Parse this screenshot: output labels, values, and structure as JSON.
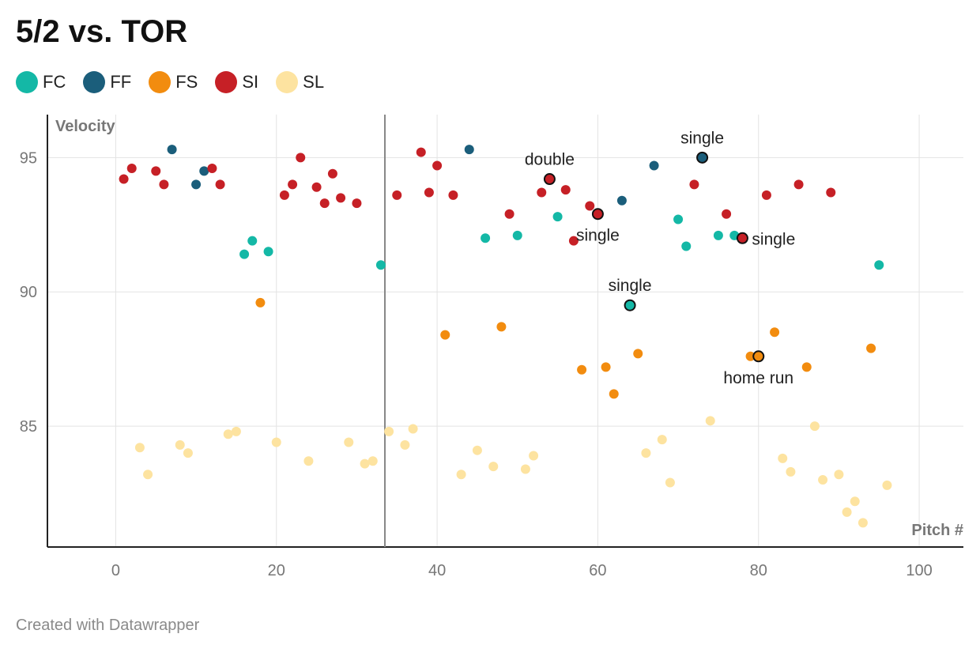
{
  "title": "5/2 vs. TOR",
  "footer": "Created with Datawrapper",
  "legend": [
    {
      "label": "FC",
      "color": "#14b8a6"
    },
    {
      "label": "FF",
      "color": "#1b5e7b"
    },
    {
      "label": "FS",
      "color": "#f28c0f"
    },
    {
      "label": "SI",
      "color": "#c62026"
    },
    {
      "label": "SL",
      "color": "#fde3a0"
    }
  ],
  "chart_data": {
    "type": "scatter",
    "title": "5/2 vs. TOR",
    "xlabel": "Pitch #",
    "ylabel": "Velocity",
    "xlim": [
      -8.5,
      105.5
    ],
    "ylim": [
      80.5,
      96.6
    ],
    "x_ticks": [
      0,
      20,
      40,
      60,
      80,
      100
    ],
    "y_ticks": [
      85,
      90,
      95
    ],
    "grid": true,
    "legend_position": "top-left",
    "vertical_marker_x": 33.5,
    "series": [
      {
        "name": "FC",
        "color": "#14b8a6",
        "x": [
          16,
          17,
          19,
          33,
          46,
          50,
          55,
          64,
          70,
          71,
          75,
          77,
          95
        ],
        "y": [
          91.4,
          91.9,
          91.5,
          91.0,
          92.0,
          92.1,
          92.8,
          89.5,
          92.7,
          91.7,
          92.1,
          92.1,
          91.0
        ]
      },
      {
        "name": "FF",
        "color": "#1b5e7b",
        "x": [
          7,
          10,
          11,
          44,
          63,
          67,
          73
        ],
        "y": [
          95.3,
          94.0,
          94.5,
          95.3,
          93.4,
          94.7,
          95.0
        ]
      },
      {
        "name": "FS",
        "color": "#f28c0f",
        "x": [
          18,
          41,
          48,
          58,
          61,
          62,
          65,
          79,
          80,
          82,
          86,
          94
        ],
        "y": [
          89.6,
          88.4,
          88.7,
          87.1,
          87.2,
          86.2,
          87.7,
          87.6,
          87.6,
          88.5,
          87.2,
          87.9
        ]
      },
      {
        "name": "SI",
        "color": "#c62026",
        "x": [
          1,
          2,
          5,
          6,
          12,
          13,
          21,
          22,
          23,
          25,
          26,
          27,
          28,
          30,
          35,
          38,
          39,
          40,
          42,
          49,
          53,
          54,
          56,
          57,
          59,
          60,
          72,
          76,
          78,
          81,
          85,
          89
        ],
        "y": [
          94.2,
          94.6,
          94.5,
          94.0,
          94.6,
          94.0,
          93.6,
          94.0,
          95.0,
          93.9,
          93.3,
          94.4,
          93.5,
          93.3,
          93.6,
          95.2,
          93.7,
          94.7,
          93.6,
          92.9,
          93.7,
          94.2,
          93.8,
          91.9,
          93.2,
          92.9,
          94.0,
          92.9,
          92.0,
          93.6,
          94.0,
          93.7
        ]
      },
      {
        "name": "SL",
        "color": "#fde3a0",
        "x": [
          3,
          4,
          8,
          9,
          14,
          15,
          20,
          24,
          29,
          31,
          32,
          34,
          36,
          37,
          43,
          45,
          47,
          51,
          52,
          66,
          68,
          69,
          74,
          83,
          84,
          87,
          88,
          90,
          91,
          92,
          93,
          96
        ],
        "y": [
          84.2,
          83.2,
          84.3,
          84.0,
          84.7,
          84.8,
          84.4,
          83.7,
          84.4,
          83.6,
          83.7,
          84.8,
          84.3,
          84.9,
          83.2,
          84.1,
          83.5,
          83.4,
          83.9,
          84.0,
          84.5,
          82.9,
          85.2,
          83.8,
          83.3,
          85.0,
          83.0,
          83.2,
          81.8,
          82.2,
          81.4,
          82.8
        ]
      }
    ],
    "highlighted_points": [
      {
        "x": 54,
        "y": 94.2,
        "series": "SI",
        "label": "double",
        "label_pos": "above"
      },
      {
        "x": 73,
        "y": 95.0,
        "series": "FF",
        "label": "single",
        "label_pos": "above"
      },
      {
        "x": 60,
        "y": 92.9,
        "series": "SI",
        "label": "single",
        "label_pos": "below"
      },
      {
        "x": 78,
        "y": 92.0,
        "series": "SI",
        "label": "single",
        "label_pos": "right"
      },
      {
        "x": 64,
        "y": 89.5,
        "series": "FC",
        "label": "single",
        "label_pos": "above"
      },
      {
        "x": 80,
        "y": 87.6,
        "series": "FS",
        "label": "home run",
        "label_pos": "below"
      }
    ]
  }
}
